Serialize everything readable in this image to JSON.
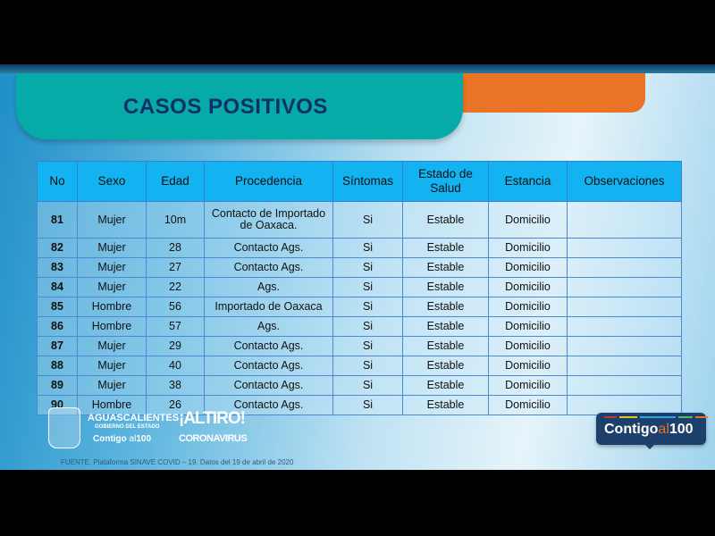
{
  "header": {
    "title": "CASOS POSITIVOS"
  },
  "table": {
    "columns": [
      "No",
      "Sexo",
      "Edad",
      "Procedencia",
      "Síntomas",
      "Estado de Salud",
      "Estancia",
      "Observaciones"
    ],
    "rows": [
      [
        "81",
        "Mujer",
        "10m",
        "Contacto de Importado de Oaxaca.",
        "Si",
        "Estable",
        "Domicilio",
        ""
      ],
      [
        "82",
        "Mujer",
        "28",
        "Contacto Ags.",
        "Si",
        "Estable",
        "Domicilio",
        ""
      ],
      [
        "83",
        "Mujer",
        "27",
        "Contacto Ags.",
        "Si",
        "Estable",
        "Domicilio",
        ""
      ],
      [
        "84",
        "Mujer",
        "22",
        "Ags.",
        "Si",
        "Estable",
        "Domicilio",
        ""
      ],
      [
        "85",
        "Hombre",
        "56",
        "Importado de Oaxaca",
        "Si",
        "Estable",
        "Domicilio",
        ""
      ],
      [
        "86",
        "Hombre",
        "57",
        "Ags.",
        "Si",
        "Estable",
        "Domicilio",
        ""
      ],
      [
        "87",
        "Mujer",
        "29",
        "Contacto Ags.",
        "Si",
        "Estable",
        "Domicilio",
        ""
      ],
      [
        "88",
        "Mujer",
        "40",
        "Contacto Ags.",
        "Si",
        "Estable",
        "Domicilio",
        ""
      ],
      [
        "89",
        "Mujer",
        "38",
        "Contacto Ags.",
        "Si",
        "Estable",
        "Domicilio",
        ""
      ],
      [
        "90",
        "Hombre",
        "26",
        "Contacto Ags.",
        "Si",
        "Estable",
        "Domicilio",
        ""
      ]
    ]
  },
  "footer": {
    "logo_state": {
      "name": "AGUASCALIENTES",
      "sub": "GOBIERNO DEL ESTADO",
      "slogan_a": "Contigo",
      "slogan_b": "al",
      "slogan_c": "100"
    },
    "logo_altiro": {
      "line1": "¡ALTIRO!",
      "line2": "CORONAVIRUS"
    },
    "badge": {
      "a": "Contigo",
      "b": "al",
      "c": "100"
    },
    "source": "FUENTE. Plataforma SINAVE COVID – 19. Datos del 19 de abril de 2020"
  },
  "colors": {
    "teal": "#06aba7",
    "orange": "#ea7425",
    "navy": "#0d2f6a",
    "header_cell": "#13b2f0"
  }
}
